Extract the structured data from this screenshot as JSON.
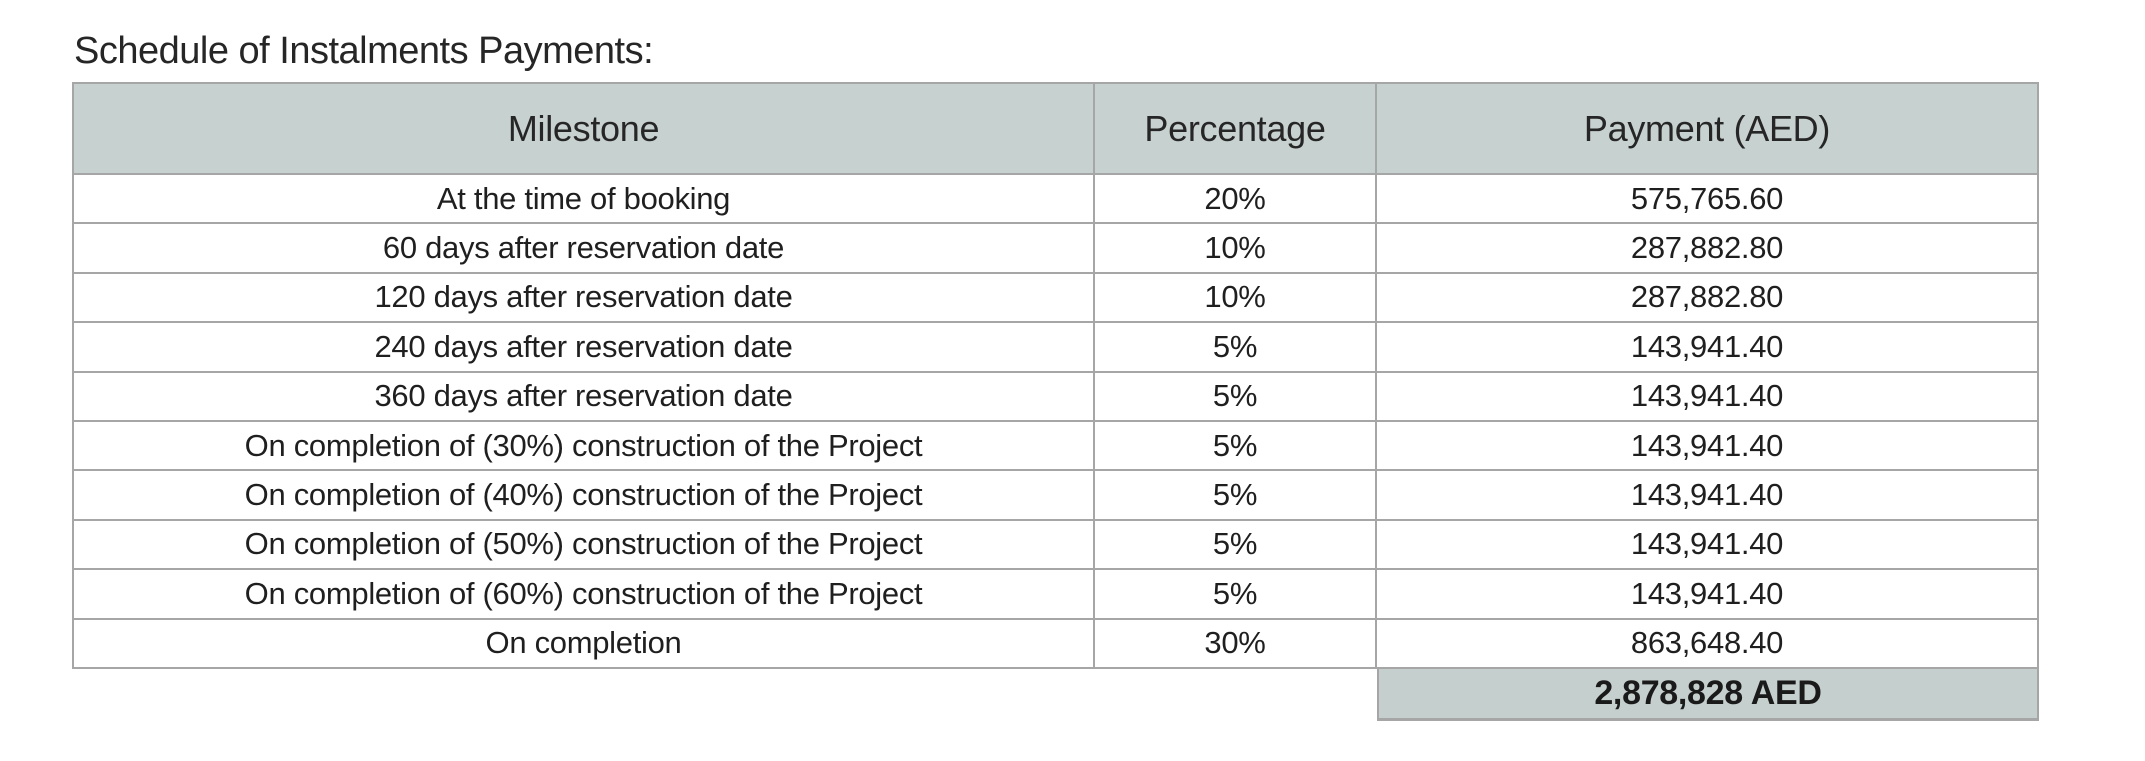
{
  "title": "Schedule of Instalments Payments:",
  "table": {
    "headers": {
      "milestone": "Milestone",
      "percentage": "Percentage",
      "payment": "Payment (AED)"
    },
    "rows": [
      {
        "milestone": "At the time of booking",
        "percentage": "20%",
        "payment": "575,765.60"
      },
      {
        "milestone": "60 days after reservation date",
        "percentage": "10%",
        "payment": "287,882.80"
      },
      {
        "milestone": "120 days after reservation date",
        "percentage": "10%",
        "payment": "287,882.80"
      },
      {
        "milestone": "240 days after reservation date",
        "percentage": "5%",
        "payment": "143,941.40"
      },
      {
        "milestone": "360 days after reservation date",
        "percentage": "5%",
        "payment": "143,941.40"
      },
      {
        "milestone": "On completion of (30%) construction of the Project",
        "percentage": "5%",
        "payment": "143,941.40"
      },
      {
        "milestone": "On completion of (40%) construction of the Project",
        "percentage": "5%",
        "payment": "143,941.40"
      },
      {
        "milestone": "On completion of (50%) construction of the Project",
        "percentage": "5%",
        "payment": "143,941.40"
      },
      {
        "milestone": "On completion of (60%) construction of the Project",
        "percentage": "5%",
        "payment": "143,941.40"
      },
      {
        "milestone": "On completion",
        "percentage": "30%",
        "payment": "863,648.40"
      }
    ],
    "total": "2,878,828 AED",
    "colors": {
      "header_fill": "#c7d1d0",
      "total_fill": "#c5cfce",
      "border": "#a6a6a6",
      "text": "#1f1f1f"
    }
  }
}
